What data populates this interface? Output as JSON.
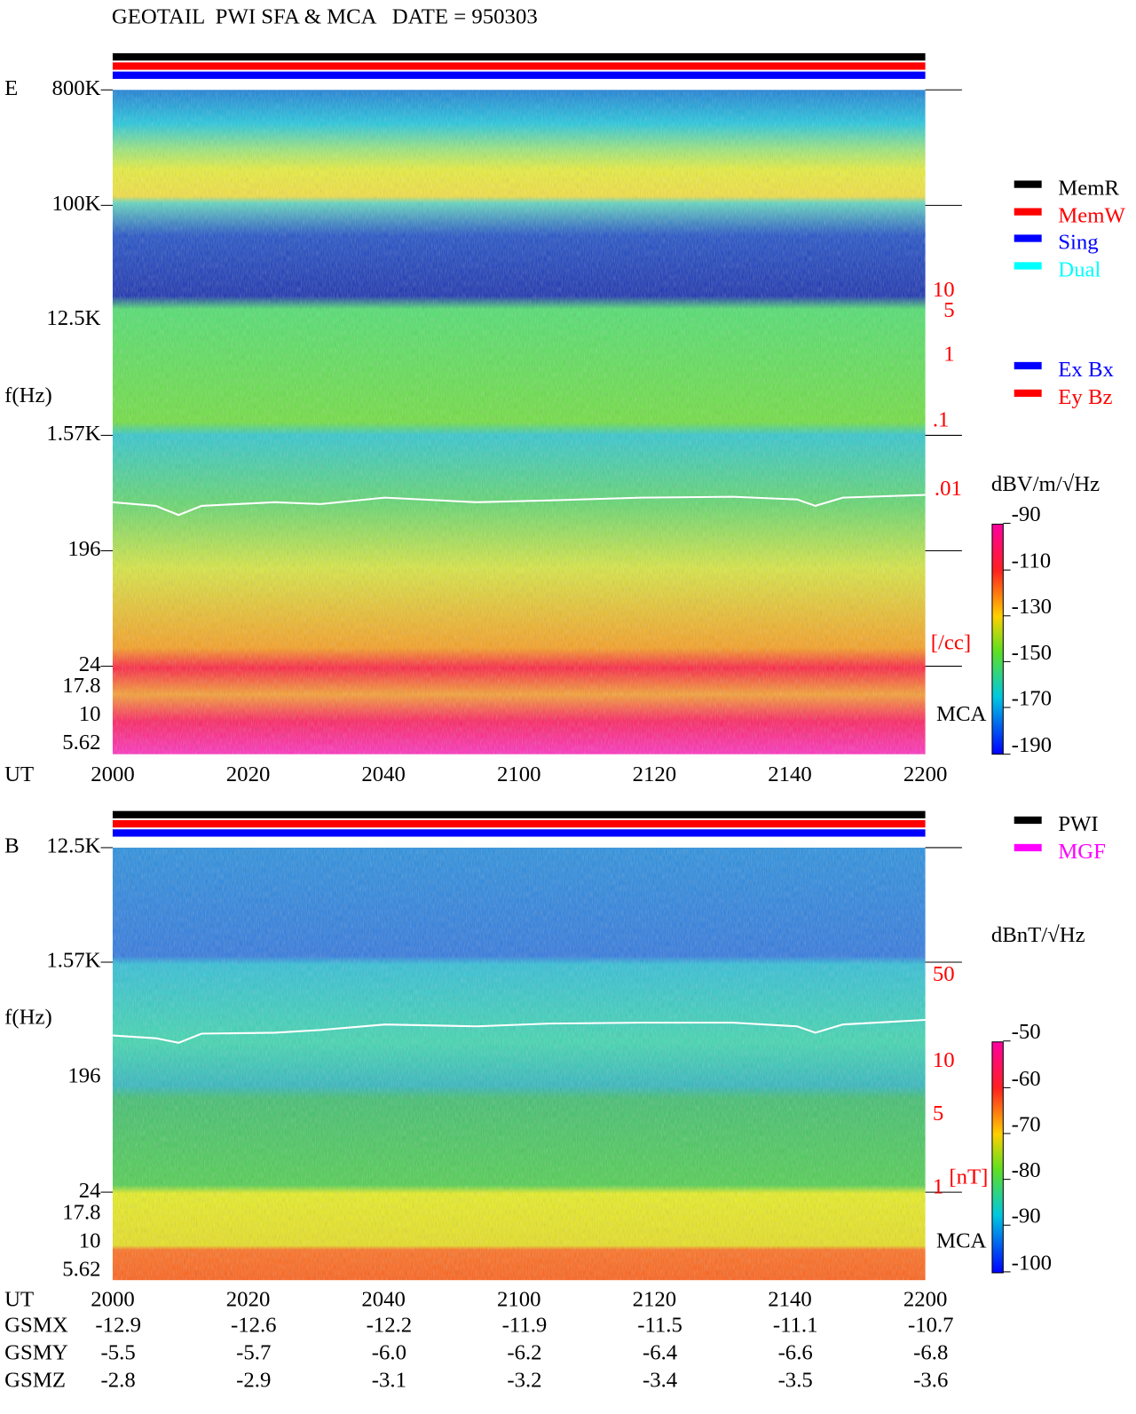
{
  "header": {
    "title": "GEOTAIL  PWI SFA & MCA   DATE = 950303"
  },
  "panels": [
    {
      "label": "E",
      "y_axis_label": "f(Hz)",
      "freq_labels": [
        "800K",
        "100K",
        "12.5K",
        "1.57K",
        "196",
        "24",
        "17.8",
        "10",
        "5.62"
      ],
      "right_labels": [
        "10",
        "5",
        "1",
        ".1",
        ".01",
        "[/cc]"
      ],
      "mca_label": "MCA",
      "time_axis_label": "UT",
      "time_labels": [
        "2000",
        "2020",
        "2040",
        "2100",
        "2120",
        "2140",
        "2200"
      ],
      "legend": [
        {
          "label": "MemR",
          "color": "#000000"
        },
        {
          "label": "MemW",
          "color": "#ff0000"
        },
        {
          "label": "Sing",
          "color": "#0000ff"
        },
        {
          "label": "Dual",
          "color": "#00ffff"
        },
        {
          "label": "Ex Bx",
          "color": "#0000ff"
        },
        {
          "label": "Ey Bz",
          "color": "#ff0000"
        }
      ],
      "colorbar_unit": "dBV/m/√Hz",
      "colorbar_ticks": [
        "-90",
        "-110",
        "-130",
        "-150",
        "-170",
        "-190"
      ]
    },
    {
      "label": "B",
      "y_axis_label": "f(Hz)",
      "freq_labels": [
        "12.5K",
        "1.57K",
        "196",
        "24",
        "17.8",
        "10",
        "5.62"
      ],
      "right_labels": [
        "50",
        "10",
        "5",
        "1",
        "[nT]"
      ],
      "mca_label": "MCA",
      "time_axis_label": "UT",
      "time_labels": [
        "2000",
        "2020",
        "2040",
        "2100",
        "2120",
        "2140",
        "2200"
      ],
      "legend": [
        {
          "label": "PWI",
          "color": "#000000"
        },
        {
          "label": "MGF",
          "color": "#ff00ff"
        }
      ],
      "colorbar_unit": "dBnT/√Hz",
      "colorbar_ticks": [
        "-50",
        "-60",
        "-70",
        "-80",
        "-90",
        "-100"
      ]
    }
  ],
  "orbit": {
    "rows": [
      {
        "name": "GSMX",
        "values": [
          "-12.9",
          "-12.6",
          "-12.2",
          "-11.9",
          "-11.5",
          "-11.1",
          "-10.7"
        ]
      },
      {
        "name": "GSMY",
        "values": [
          "-5.5",
          "-5.7",
          "-6.0",
          "-6.2",
          "-6.4",
          "-6.6",
          "-6.8"
        ]
      },
      {
        "name": "GSMZ",
        "values": [
          "-2.8",
          "-2.9",
          "-3.1",
          "-3.2",
          "-3.4",
          "-3.5",
          "-3.6"
        ]
      }
    ]
  }
}
